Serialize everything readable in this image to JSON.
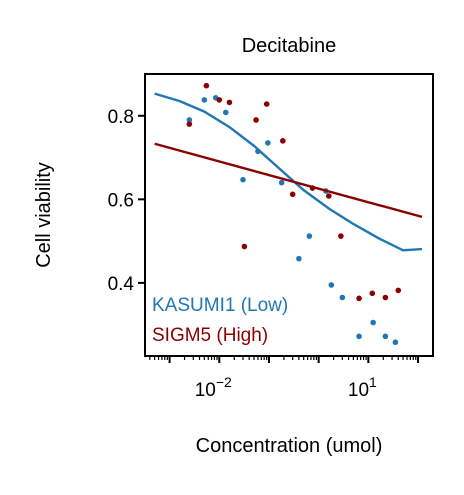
{
  "chart_data": {
    "type": "scatter",
    "title": "Decitabine",
    "xlabel": "Concentration (umol)",
    "ylabel": "Cell viability",
    "xscale": "log",
    "xlim": [
      0.00032,
      200
    ],
    "ylim": [
      0.225,
      0.9
    ],
    "xticks": [
      {
        "value": 0.01,
        "base": "10",
        "exp": "−2"
      },
      {
        "value": 10,
        "base": "10",
        "exp": "1"
      }
    ],
    "yticks": [
      0.4,
      0.6,
      0.8
    ],
    "ytick_labels": [
      "0.4",
      "0.6",
      "0.8"
    ],
    "grid": false,
    "legend_placement": "bottom-left",
    "series": [
      {
        "name": "KASUMI1 (Low)",
        "color": "#1f77b4",
        "points": [
          [
            0.0025,
            0.79
          ],
          [
            0.005,
            0.838
          ],
          [
            0.0085,
            0.843
          ],
          [
            0.0135,
            0.808
          ],
          [
            0.03,
            0.647
          ],
          [
            0.06,
            0.715
          ],
          [
            0.095,
            0.735
          ],
          [
            0.18,
            0.64
          ],
          [
            0.4,
            0.458
          ],
          [
            0.65,
            0.512
          ],
          [
            1.4,
            0.62
          ],
          [
            1.8,
            0.395
          ],
          [
            3.0,
            0.365
          ],
          [
            6.5,
            0.272
          ],
          [
            12.5,
            0.305
          ],
          [
            22,
            0.272
          ],
          [
            35,
            0.258
          ]
        ],
        "fit": [
          [
            0.0005,
            0.853
          ],
          [
            0.0016,
            0.835
          ],
          [
            0.005,
            0.81
          ],
          [
            0.016,
            0.773
          ],
          [
            0.05,
            0.728
          ],
          [
            0.16,
            0.674
          ],
          [
            0.5,
            0.622
          ],
          [
            1.6,
            0.578
          ],
          [
            5,
            0.541
          ],
          [
            16,
            0.507
          ],
          [
            50,
            0.478
          ],
          [
            120,
            0.481
          ]
        ]
      },
      {
        "name": "SIGM5 (High)",
        "color": "#8b0000",
        "points": [
          [
            0.0025,
            0.78
          ],
          [
            0.0055,
            0.872
          ],
          [
            0.01,
            0.838
          ],
          [
            0.016,
            0.832
          ],
          [
            0.032,
            0.487
          ],
          [
            0.055,
            0.79
          ],
          [
            0.09,
            0.828
          ],
          [
            0.19,
            0.74
          ],
          [
            0.3,
            0.612
          ],
          [
            0.75,
            0.627
          ],
          [
            1.6,
            0.608
          ],
          [
            2.8,
            0.512
          ],
          [
            6.5,
            0.363
          ],
          [
            12,
            0.375
          ],
          [
            22,
            0.365
          ],
          [
            40,
            0.382
          ]
        ],
        "fit": [
          [
            0.0005,
            0.733
          ],
          [
            120,
            0.558
          ]
        ]
      }
    ]
  }
}
